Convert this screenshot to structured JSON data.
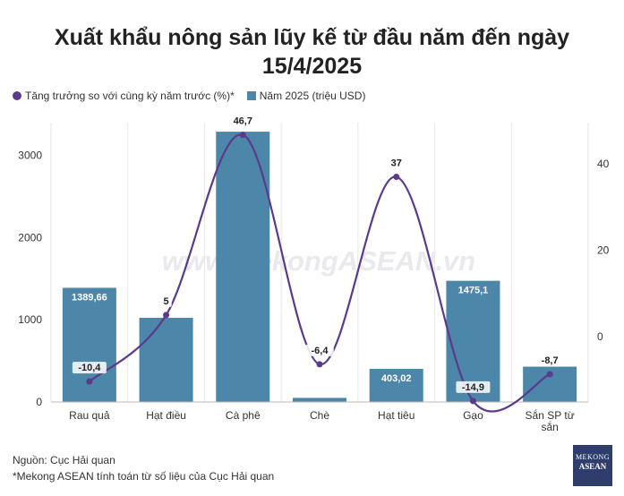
{
  "title_line1": "Xuất khẩu nông sản lũy kế từ đầu năm đến ngày",
  "title_line2": "15/4/2025",
  "legend": {
    "growth": "Tăng trưởng so với cùng kỳ năm trước (%)*",
    "value": "Năm 2025 (triệu USD)"
  },
  "watermark": "www.MekongASEAN.vn",
  "footer": {
    "source": "Nguồn: Cục Hải quan",
    "note": "*Mekong ASEAN tính toán từ số liệu của Cục Hải quan"
  },
  "logo": {
    "line1": "MEKONG",
    "line2": "ASEAN"
  },
  "colors": {
    "bar": "#4c86a8",
    "line": "#5b3a8c"
  },
  "chart_data": {
    "type": "bar",
    "categories": [
      "Rau quả",
      "Hạt điều",
      "Cà phê",
      "Chè",
      "Hạt tiêu",
      "Gạo",
      "Sắn SP từ sắn"
    ],
    "series": [
      {
        "name": "Năm 2025 (triệu USD)",
        "type": "bar",
        "axis": "left",
        "values": [
          1389.66,
          1025,
          3290,
          50,
          403.02,
          1475.1,
          430
        ],
        "labels": [
          "1389,66",
          "",
          "",
          "",
          "403,02",
          "1475,1",
          ""
        ]
      },
      {
        "name": "Tăng trưởng so với cùng kỳ năm trước (%)*",
        "type": "line",
        "axis": "right",
        "values": [
          -10.4,
          5,
          46.7,
          -6.4,
          37,
          -14.9,
          -8.7
        ],
        "labels": [
          "-10,4",
          "5",
          "46,7",
          "-6,4",
          "37",
          "-14,9",
          "-8,7"
        ]
      }
    ],
    "y_left": {
      "ticks": [
        0,
        1000,
        2000,
        3000
      ],
      "tick_labels": [
        "0",
        "1000",
        "2000",
        "3000"
      ],
      "ylim": [
        0,
        3400
      ]
    },
    "y_right": {
      "ticks": [
        0,
        20,
        40
      ],
      "tick_labels": [
        "0",
        "20",
        "40"
      ],
      "ylim": [
        -15.3,
        48.7
      ]
    },
    "grid": "vertical",
    "legend_position": "top-left"
  }
}
